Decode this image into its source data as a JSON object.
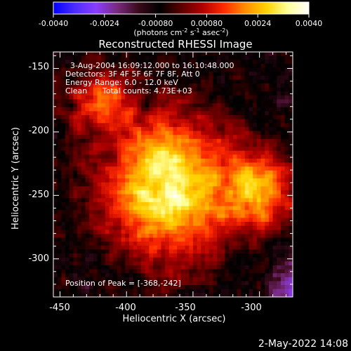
{
  "colorbar": {
    "ticks": [
      "-0.0040",
      "-0.0024",
      "-0.00080",
      "0.00080",
      "0.0024",
      "0.0040"
    ],
    "label_main": "(photons cm",
    "label_exp1": "-2",
    "label_mid": " s",
    "label_exp2": "-1",
    "label_end": " asec",
    "label_exp3": "-2",
    "label_close": ")",
    "range": [
      -0.004,
      0.004
    ],
    "gradient": [
      "#0000ff",
      "#4b2cff",
      "#8a3dff",
      "#7a2a7e",
      "#3a0a1a",
      "#000000",
      "#5a0000",
      "#b00000",
      "#ff2a00",
      "#ff8c00",
      "#ffd200",
      "#ffff9a",
      "#ffffff"
    ]
  },
  "chart_data": {
    "type": "heatmap",
    "title": "Reconstructed RHESSI Image",
    "xlabel": "Heliocentric X (arcsec)",
    "ylabel": "Heliocentric Y (arcsec)",
    "xlim": [
      -455,
      -275
    ],
    "ylim": [
      -330,
      -137
    ],
    "x_ticks": [
      "-450",
      "-400",
      "-350",
      "-300"
    ],
    "x_tick_values": [
      -450,
      -400,
      -350,
      -300
    ],
    "y_ticks": [
      "-150",
      "-200",
      "-250",
      "-300"
    ],
    "y_tick_values": [
      -150,
      -200,
      -250,
      -300
    ],
    "peak": [
      -368,
      -242
    ],
    "annotations": {
      "time": "3-Aug-2004 16:09:12.000 to 16:10:48.000",
      "detectors": "Detectors: 3F 4F 5F 6F 7F 8F, Att 0",
      "energy": "Energy Range: 6.0 - 12.0 keV",
      "clean_label": "Clean",
      "counts": "Total counts: 4.73E+03",
      "peak_text": "Position of Peak = [-368,-242]"
    }
  },
  "footer": {
    "timestamp": "2-May-2022 14:08"
  }
}
